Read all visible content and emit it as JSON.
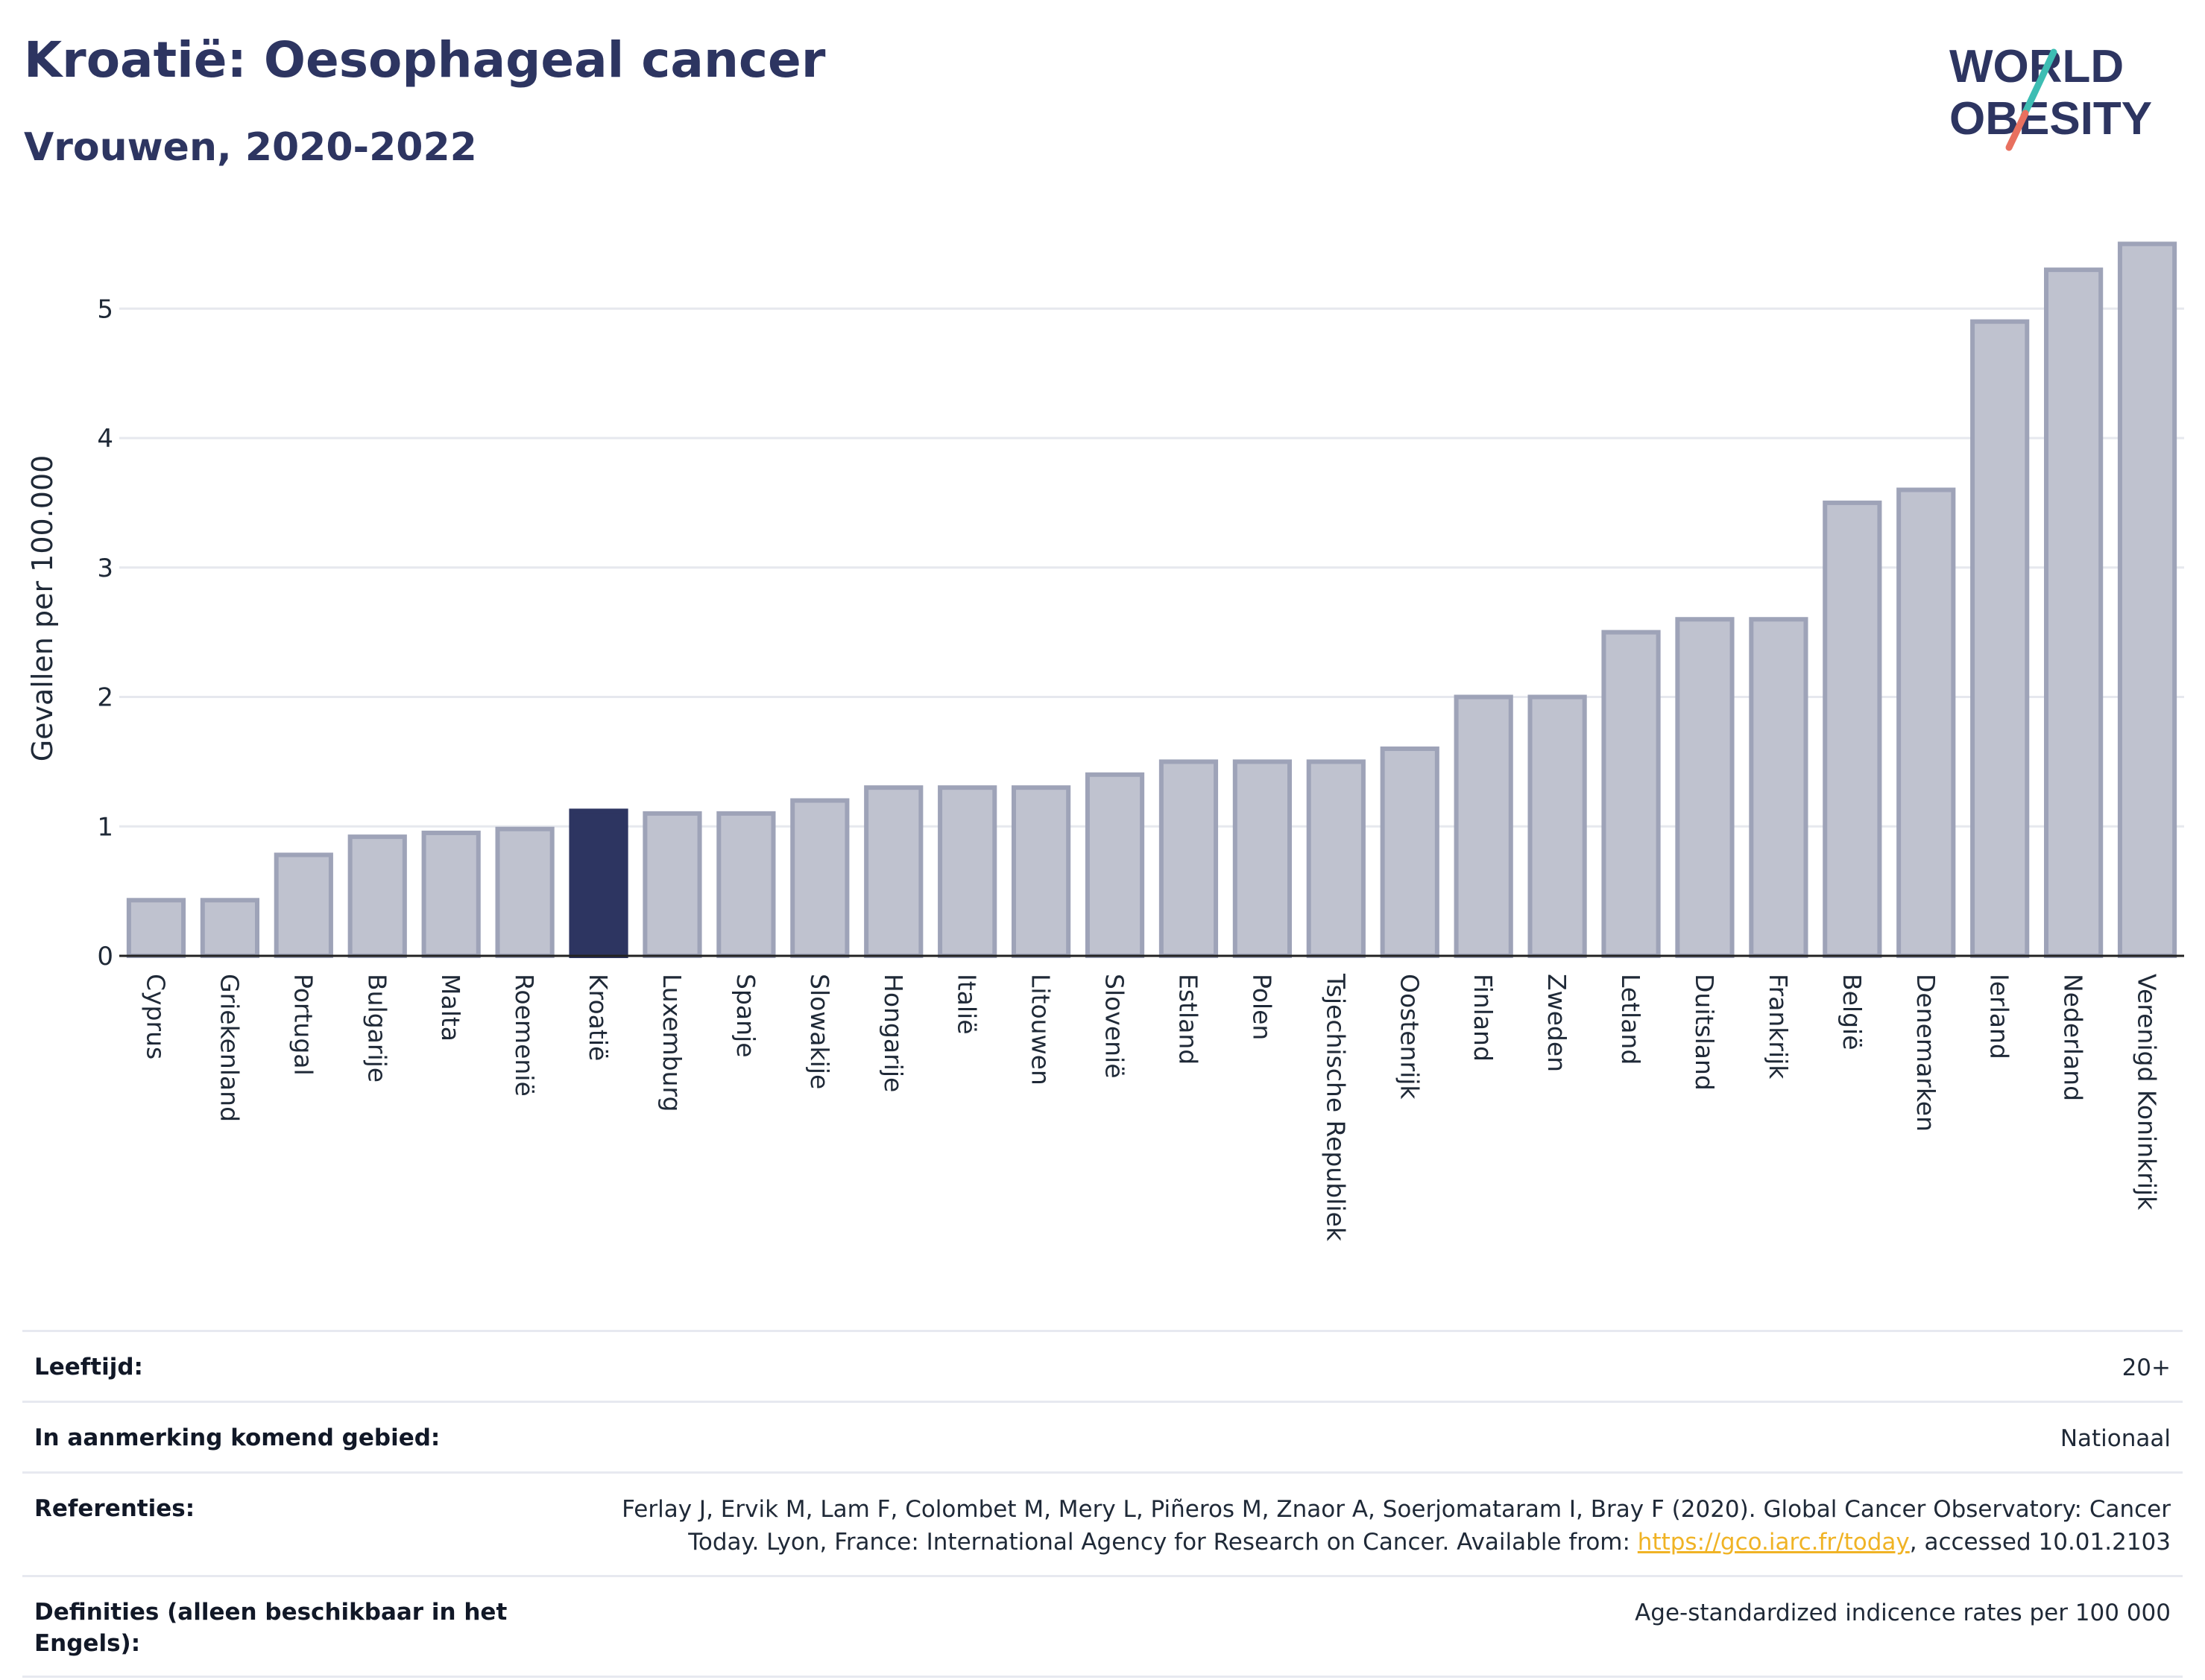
{
  "header": {
    "title": "Kroatië: Oesophageal cancer",
    "subtitle": "Vrouwen, 2020-2022"
  },
  "logo": {
    "line1": "WORLD",
    "line2": "OBESITY",
    "colors": {
      "text": "#2d3561",
      "slash_top": "#3dbdb3",
      "slash_bottom": "#e8705f"
    }
  },
  "chart_data": {
    "type": "bar",
    "title": "Kroatië: Oesophageal cancer",
    "subtitle": "Vrouwen, 2020-2022",
    "xlabel": "",
    "ylabel": "Gevallen per 100.000",
    "ylim": [
      0,
      5.6
    ],
    "yticks": [
      0,
      1,
      2,
      3,
      4,
      5
    ],
    "grid": true,
    "highlight": "Kroatië",
    "colors": {
      "bar": "#bfc2cf",
      "bar_edge": "#9ea3b8",
      "highlight": "#2d3561"
    },
    "categories": [
      "Cyprus",
      "Griekenland",
      "Portugal",
      "Bulgarije",
      "Malta",
      "Roemenië",
      "Kroatië",
      "Luxemburg",
      "Spanje",
      "Slowakije",
      "Hongarije",
      "Italië",
      "Litouwen",
      "Slovenië",
      "Estland",
      "Polen",
      "Tsjechische Republiek",
      "Oostenrijk",
      "Finland",
      "Zweden",
      "Letland",
      "Duitsland",
      "Frankrijk",
      "België",
      "Denemarken",
      "Ierland",
      "Nederland",
      "Verenigd Koninkrijk"
    ],
    "values": [
      0.43,
      0.43,
      0.78,
      0.92,
      0.95,
      0.98,
      1.12,
      1.1,
      1.1,
      1.2,
      1.3,
      1.3,
      1.3,
      1.4,
      1.5,
      1.5,
      1.5,
      1.6,
      2.0,
      2.0,
      2.5,
      2.6,
      2.6,
      3.5,
      3.6,
      4.9,
      5.3,
      5.5
    ]
  },
  "info": {
    "rows": [
      {
        "label": "Leeftijd:",
        "value": "20+"
      },
      {
        "label": "In aanmerking komend gebied:",
        "value": "Nationaal"
      },
      {
        "label": "Referenties:",
        "value_before": "Ferlay J, Ervik M, Lam F, Colombet M, Mery L, Piñeros M, Znaor A, Soerjomataram I, Bray F (2020). Global Cancer Observatory: Cancer Today. Lyon, France: International Agency for Research on Cancer. Available from: ",
        "link": "https://gco.iarc.fr/today",
        "value_after": ", accessed 10.01.2103"
      },
      {
        "label": "Definities (alleen beschikbaar in het Engels):",
        "value": "Age-standardized indicence rates per 100 000"
      }
    ]
  }
}
